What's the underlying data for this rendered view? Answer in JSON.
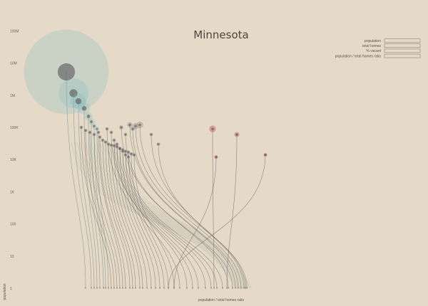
{
  "chart_data": {
    "type": "scatter",
    "title": "Minnesota",
    "xlabel": "population / total homes ratio",
    "ylabel": "population",
    "y_scale": "log",
    "y_ticks": [
      "1",
      "10",
      "100",
      "1K",
      "10K",
      "100K",
      "1M",
      "10M",
      "100M"
    ],
    "legend": {
      "placement": "top-right",
      "items": [
        "population",
        "total homes",
        "% vacant",
        "population / total homes ratio"
      ]
    },
    "colors": {
      "background": "#e5d9c7",
      "urban": "#6fb8bd",
      "mid": "#9a9390",
      "high_vacancy": "#b15a63",
      "curve": "#4f6f6c"
    },
    "series": [
      {
        "values": [
          {
            "population": 5300000,
            "ring": 90000000,
            "group": "urban"
          },
          {
            "population": 1150000,
            "ring": 11000000,
            "group": "urban"
          },
          {
            "population": 650000,
            "ring": 3200000,
            "group": "urban"
          },
          {
            "population": 390000,
            "ring": 1800000,
            "group": "urban"
          },
          {
            "population": 220000,
            "ring": 900000,
            "group": "urban"
          },
          {
            "population": 150000,
            "ring": 600000,
            "group": "urban"
          },
          {
            "population": 110000,
            "ring": 350000,
            "group": "urban"
          },
          {
            "population": 90000,
            "ring": 250000,
            "group": "urban"
          },
          {
            "population": 100000,
            "ring": 180000,
            "group": "mid"
          },
          {
            "population": 80000,
            "ring": 150000,
            "group": "mid"
          },
          {
            "population": 70000,
            "ring": 120000,
            "group": "mid"
          },
          {
            "population": 60000,
            "ring": 100000,
            "group": "mid"
          },
          {
            "population": 70000,
            "ring": 110000,
            "group": "mid"
          },
          {
            "population": 50000,
            "ring": 90000,
            "group": "mid"
          },
          {
            "population": 40000,
            "ring": 70000,
            "group": "mid"
          },
          {
            "population": 35000,
            "ring": 60000,
            "group": "mid"
          },
          {
            "population": 30000,
            "ring": 50000,
            "group": "mid"
          },
          {
            "population": 28000,
            "ring": 45000,
            "group": "mid"
          },
          {
            "population": 27000,
            "ring": 45000,
            "group": "mid"
          },
          {
            "population": 25000,
            "ring": 40000,
            "group": "mid"
          },
          {
            "population": 22000,
            "ring": 35000,
            "group": "mid"
          },
          {
            "population": 20000,
            "ring": 30000,
            "group": "mid"
          },
          {
            "population": 18000,
            "ring": 28000,
            "group": "mid"
          },
          {
            "population": 17000,
            "ring": 25000,
            "group": "mid"
          },
          {
            "population": 15000,
            "ring": 22000,
            "group": "mid"
          },
          {
            "population": 14000,
            "ring": 20000,
            "group": "mid"
          },
          {
            "population": 90000,
            "ring": 180000,
            "group": "mid"
          },
          {
            "population": 70000,
            "ring": 120000,
            "group": "mid"
          },
          {
            "population": 40000,
            "ring": 80000,
            "group": "mid"
          },
          {
            "population": 30000,
            "ring": 50000,
            "group": "mid"
          },
          {
            "population": 22000,
            "ring": 40000,
            "group": "mid"
          },
          {
            "population": 18000,
            "ring": 30000,
            "group": "mid"
          },
          {
            "population": 14000,
            "ring": 25000,
            "group": "mid"
          },
          {
            "population": 12000,
            "ring": 20000,
            "group": "mid"
          },
          {
            "population": 100000,
            "ring": 300000,
            "group": "mid"
          },
          {
            "population": 60000,
            "ring": 150000,
            "group": "mid"
          },
          {
            "population": 120000,
            "ring": 450000,
            "group": "mid"
          },
          {
            "population": 90000,
            "ring": 280000,
            "group": "mid"
          },
          {
            "population": 110000,
            "ring": 600000,
            "group": "mid"
          },
          {
            "population": 120000,
            "ring": 700000,
            "group": "mid"
          },
          {
            "population": 60000,
            "ring": 160000,
            "group": "mid"
          },
          {
            "population": 30000,
            "ring": 80000,
            "group": "mid"
          },
          {
            "population": 90000,
            "ring": 700000,
            "group": "high_vacancy"
          },
          {
            "population": 60000,
            "ring": 400000,
            "group": "high_vacancy"
          },
          {
            "population": 12000,
            "ring": 25000,
            "group": "high_vacancy"
          },
          {
            "population": 14000,
            "ring": 40000,
            "group": "high_vacancy"
          }
        ]
      }
    ]
  }
}
